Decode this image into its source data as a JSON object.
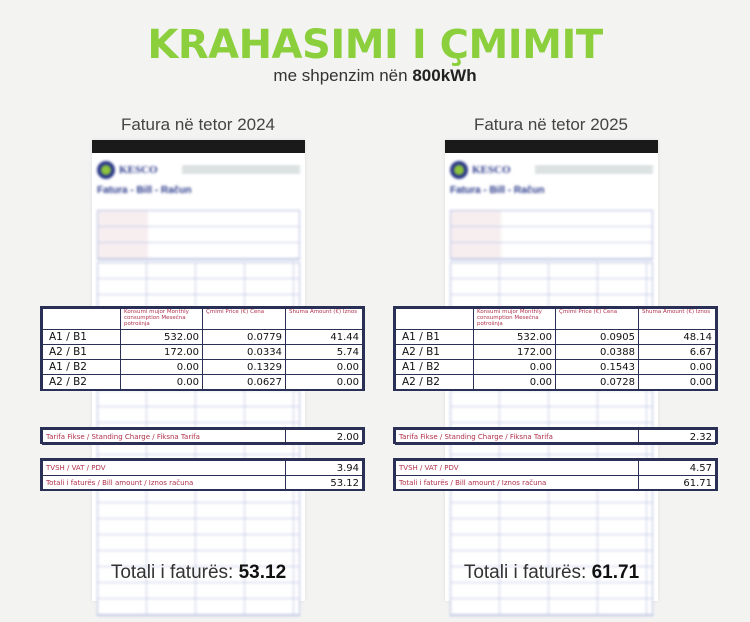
{
  "header": {
    "title": "KRAHASIMI I ÇMIMIT",
    "subtitle_prefix": "me shpenzim nën",
    "subtitle_bold": "800kWh",
    "accent": "#8ccf3c"
  },
  "columns": {
    "consumption": "Konsumi mujor Monthly consumption Mesečna potrošnja",
    "price": "Çmimi Price (€) Cena",
    "amount": "Shuma Amount (€) Iznos"
  },
  "labels": {
    "standing": "Tarifa Fikse / Standing Charge / Fiksna Tarifa",
    "vat": "TVSH / VAT / PDV",
    "bill": "Totali i faturës / Bill amount / Iznos računa",
    "total_prefix": "Totali i faturës:",
    "brand": "KESCO",
    "doc_title": "Fatura - Bill - Račun"
  },
  "invoices": [
    {
      "caption": "Fatura në tetor 2024",
      "rows": [
        [
          "A1 / B1",
          "532.00",
          "0.0779",
          "41.44"
        ],
        [
          "A2 / B1",
          "172.00",
          "0.0334",
          "5.74"
        ],
        [
          "A1 / B2",
          "0.00",
          "0.1329",
          "0.00"
        ],
        [
          "A2 / B2",
          "0.00",
          "0.0627",
          "0.00"
        ]
      ],
      "standing": "2.00",
      "vat": "3.94",
      "bill": "53.12",
      "total": "53.12"
    },
    {
      "caption": "Fatura në tetor 2025",
      "rows": [
        [
          "A1 / B1",
          "532.00",
          "0.0905",
          "48.14"
        ],
        [
          "A2 / B1",
          "172.00",
          "0.0388",
          "6.67"
        ],
        [
          "A1 / B2",
          "0.00",
          "0.1543",
          "0.00"
        ],
        [
          "A2 / B2",
          "0.00",
          "0.0728",
          "0.00"
        ]
      ],
      "standing": "2.32",
      "vat": "4.57",
      "bill": "61.71",
      "total": "61.71"
    }
  ]
}
